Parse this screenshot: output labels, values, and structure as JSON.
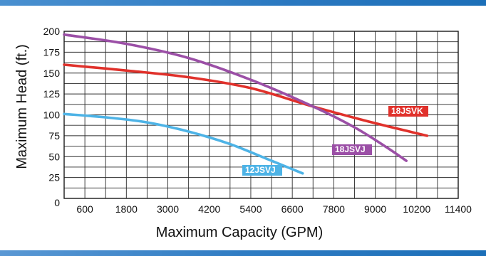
{
  "chart_data": {
    "type": "line",
    "title": "",
    "xlabel": "Maximum Capacity (GPM)",
    "ylabel": "Maximum Head (ft.)",
    "xlim": [
      0,
      11400
    ],
    "ylim": [
      0,
      200
    ],
    "x_ticks": [
      "600",
      "1800",
      "3000",
      "4200",
      "5400",
      "6600",
      "7800",
      "9000",
      "10200",
      "11400"
    ],
    "y_ticks": [
      "0",
      "25",
      "50",
      "75",
      "100",
      "125",
      "150",
      "175",
      "200"
    ],
    "grid": true,
    "series": [
      {
        "name": "12JSVJ",
        "color": "#4db3e6",
        "x": [
          0,
          1200,
          2400,
          3600,
          4800,
          6000,
          6600,
          6900
        ],
        "y": [
          101,
          97,
          91,
          80,
          65,
          45,
          35,
          30
        ]
      },
      {
        "name": "18JSVK",
        "color": "#e0312b",
        "x": [
          0,
          1800,
          3600,
          5400,
          7200,
          9000,
          10500
        ],
        "y": [
          160,
          153,
          145,
          132,
          110,
          90,
          75
        ]
      },
      {
        "name": "18JSVJ",
        "color": "#9b4fa6",
        "x": [
          0,
          1800,
          3600,
          5400,
          7200,
          8400,
          9300,
          9900
        ],
        "y": [
          196,
          185,
          168,
          142,
          110,
          85,
          62,
          45
        ]
      }
    ]
  }
}
